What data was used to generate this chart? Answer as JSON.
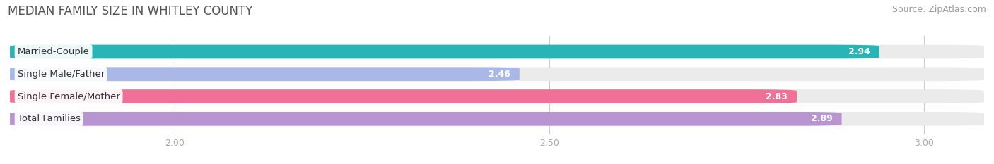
{
  "title": "MEDIAN FAMILY SIZE IN WHITLEY COUNTY",
  "source": "Source: ZipAtlas.com",
  "categories": [
    "Married-Couple",
    "Single Male/Father",
    "Single Female/Mother",
    "Total Families"
  ],
  "values": [
    2.94,
    2.46,
    2.83,
    2.89
  ],
  "bar_colors": [
    "#29b5b5",
    "#aab8e8",
    "#f07098",
    "#b894d0"
  ],
  "bar_bg_colors": [
    "#ebebeb",
    "#ebebeb",
    "#ebebeb",
    "#ebebeb"
  ],
  "xlim": [
    1.78,
    3.08
  ],
  "xmin": 1.78,
  "xmax": 3.08,
  "data_min": 1.78,
  "data_max": 3.08,
  "xticks": [
    2.0,
    2.5,
    3.0
  ],
  "xtick_labels": [
    "2.00",
    "2.50",
    "3.00"
  ],
  "title_fontsize": 12,
  "source_fontsize": 9,
  "label_fontsize": 9.5,
  "value_fontsize": 9,
  "bar_height": 0.62,
  "background_color": "#ffffff",
  "title_color": "#555555",
  "source_color": "#999999"
}
